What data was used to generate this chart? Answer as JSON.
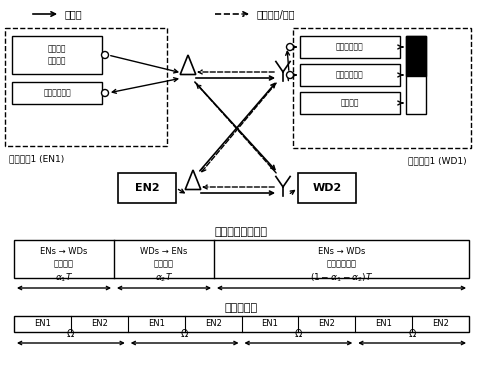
{
  "title_legend1": "能量流",
  "title_legend2": "信道训练/反馈",
  "en1_label": "能量节点1 (EN1)",
  "wd1_label": "无线终端1 (WD1)",
  "en2_label": "EN2",
  "wd2_label": "WD2",
  "time_title": "传输时间时隙分配",
  "freq_title": "子频段分配",
  "freq_slots": [
    "EN1",
    "EN2",
    "EN1",
    "EN2",
    "EN1",
    "EN2",
    "EN1",
    "EN2"
  ],
  "bg_color": "#ffffff",
  "line_color": "#000000"
}
